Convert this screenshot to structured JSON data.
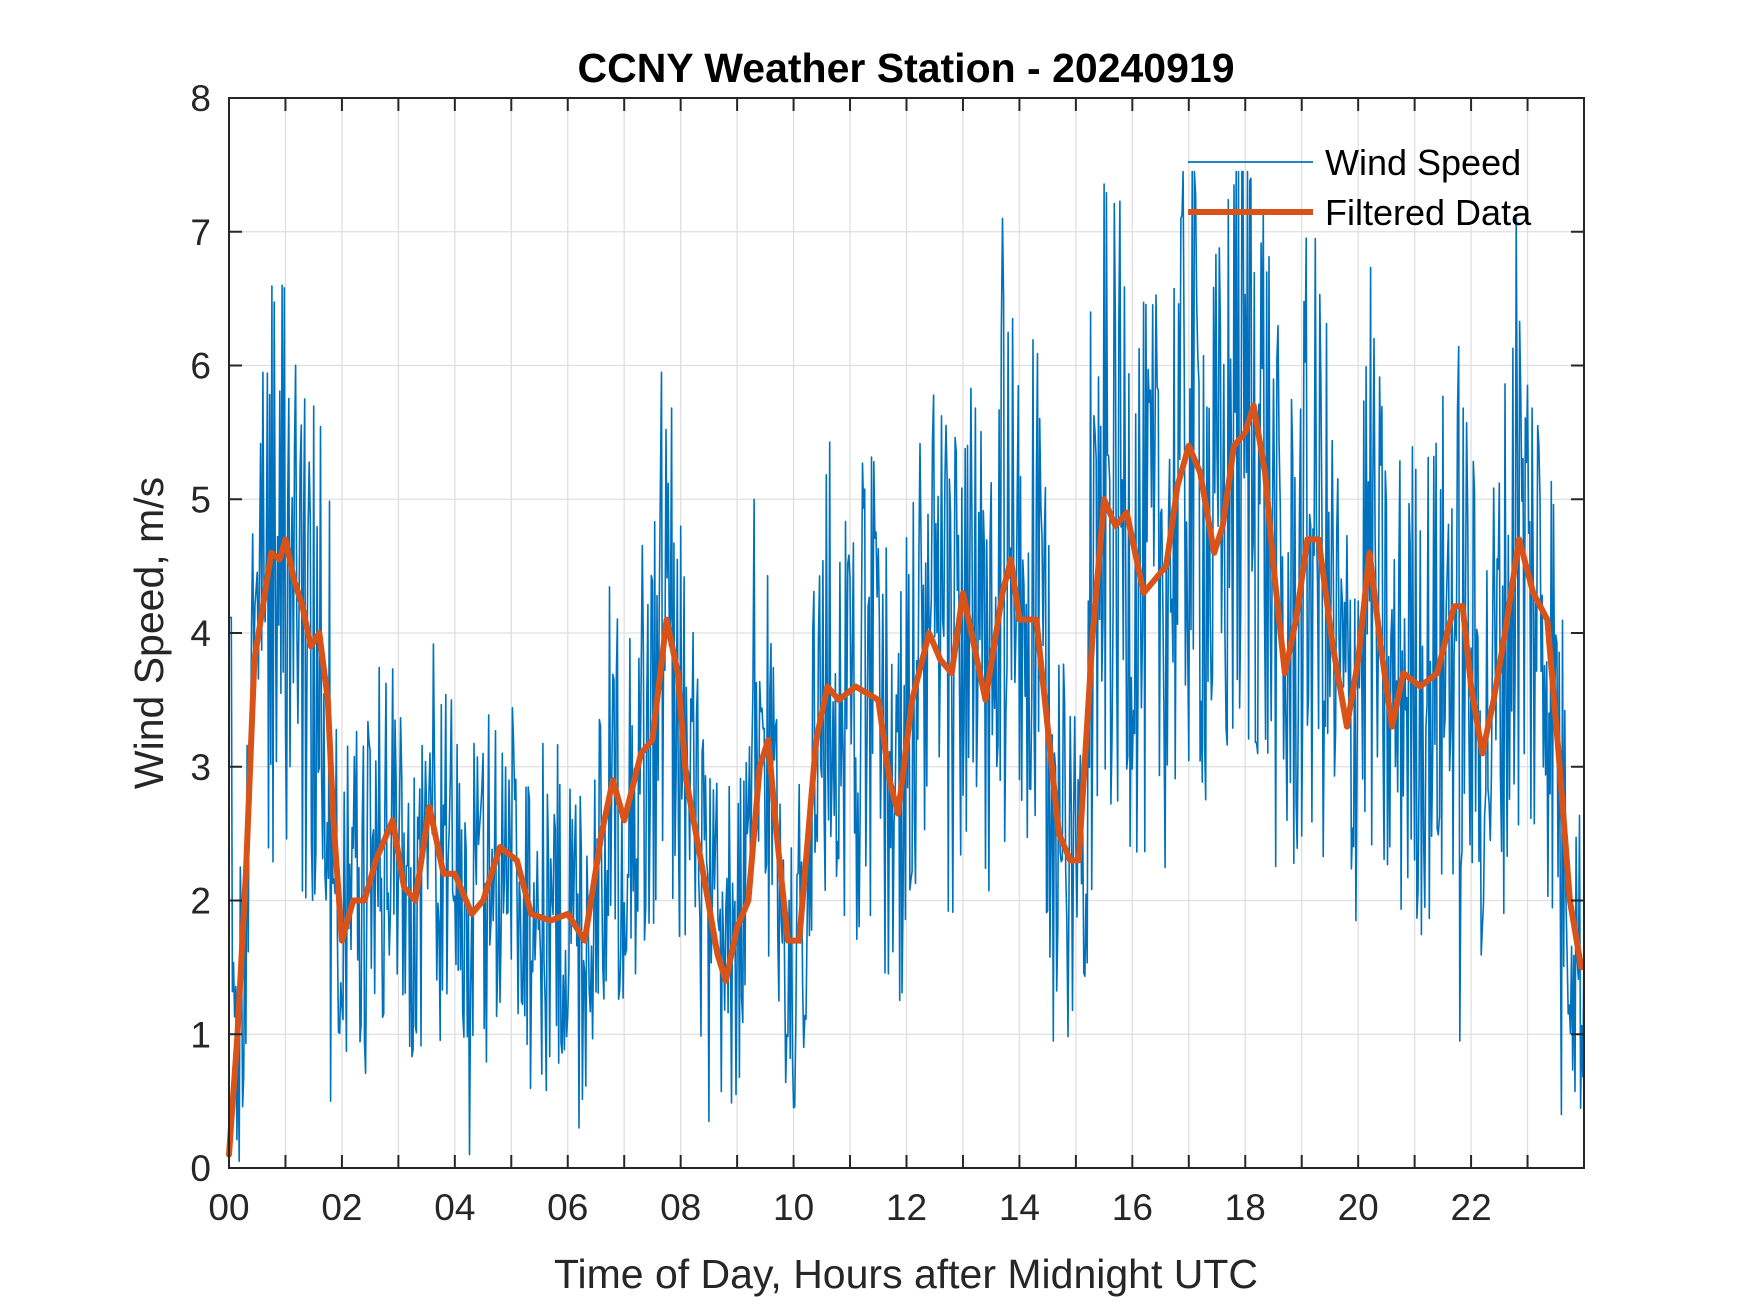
{
  "chart_data": {
    "type": "line",
    "title": "CCNY Weather Station - 20240919",
    "xlabel": "Time of Day, Hours after Midnight UTC",
    "ylabel": "Wind Speed, m/s",
    "xlim": [
      0,
      24
    ],
    "ylim": [
      0,
      8
    ],
    "grid": true,
    "x_ticks": [
      0,
      2,
      4,
      6,
      8,
      10,
      12,
      14,
      16,
      18,
      20,
      22
    ],
    "x_tick_labels": [
      "00",
      "02",
      "04",
      "06",
      "08",
      "10",
      "12",
      "14",
      "16",
      "18",
      "20",
      "22"
    ],
    "x_minor_grid_step": 1,
    "y_ticks": [
      0,
      1,
      2,
      3,
      4,
      5,
      6,
      7,
      8
    ],
    "y_tick_labels": [
      "0",
      "1",
      "2",
      "3",
      "4",
      "5",
      "6",
      "7",
      "8"
    ],
    "legend_position": "top-right",
    "series": [
      {
        "name": "Wind Speed",
        "color": "#0072BD",
        "style": "thin",
        "sample_interval_hours": 0.05,
        "x_start": 0,
        "noise_envelope_note": "raw 1-min-ish data, noisy around filtered curve",
        "peaks": [
          {
            "x": 0.95,
            "y": 6.6
          },
          {
            "x": 1.35,
            "y": 5.75
          },
          {
            "x": 7.65,
            "y": 5.95
          },
          {
            "x": 9.3,
            "y": 5.0
          },
          {
            "x": 13.7,
            "y": 7.1
          },
          {
            "x": 15.25,
            "y": 6.4
          },
          {
            "x": 16.85,
            "y": 7.1
          },
          {
            "x": 17.8,
            "y": 7.35
          },
          {
            "x": 18.1,
            "y": 7.4
          },
          {
            "x": 22.8,
            "y": 7.1
          }
        ],
        "troughs": [
          {
            "x": 1.8,
            "y": 0.5
          },
          {
            "x": 4.25,
            "y": 0.1
          },
          {
            "x": 6.2,
            "y": 0.3
          },
          {
            "x": 8.5,
            "y": 0.35
          },
          {
            "x": 10.0,
            "y": 0.45
          },
          {
            "x": 14.6,
            "y": 0.95
          },
          {
            "x": 21.8,
            "y": 0.95
          },
          {
            "x": 23.6,
            "y": 0.4
          }
        ]
      },
      {
        "name": "Filtered Data",
        "color": "#D95319",
        "style": "thick",
        "x": [
          0,
          0.15,
          0.3,
          0.45,
          0.6,
          0.75,
          0.9,
          1.0,
          1.15,
          1.3,
          1.45,
          1.6,
          1.75,
          1.85,
          2.0,
          2.2,
          2.4,
          2.6,
          2.9,
          3.1,
          3.3,
          3.55,
          3.8,
          4.0,
          4.3,
          4.5,
          4.8,
          5.1,
          5.35,
          5.7,
          6.0,
          6.3,
          6.6,
          6.8,
          7.0,
          7.3,
          7.5,
          7.75,
          7.95,
          8.1,
          8.4,
          8.65,
          8.8,
          9.0,
          9.2,
          9.4,
          9.55,
          9.7,
          9.9,
          10.1,
          10.4,
          10.6,
          10.8,
          11.1,
          11.5,
          11.7,
          11.85,
          12.1,
          12.4,
          12.6,
          12.8,
          13.0,
          13.2,
          13.4,
          13.7,
          13.85,
          14.0,
          14.3,
          14.5,
          14.7,
          14.9,
          15.05,
          15.3,
          15.5,
          15.7,
          15.9,
          16.2,
          16.4,
          16.6,
          16.8,
          17.0,
          17.2,
          17.45,
          17.6,
          17.8,
          18.0,
          18.15,
          18.35,
          18.5,
          18.7,
          18.9,
          19.1,
          19.3,
          19.55,
          19.8,
          20.0,
          20.2,
          20.4,
          20.6,
          20.8,
          21.1,
          21.4,
          21.7,
          21.85,
          22.0,
          22.2,
          22.4,
          22.6,
          22.85,
          23.1,
          23.35,
          23.55,
          23.75,
          23.95
        ],
        "y": [
          0.1,
          1.0,
          2.2,
          3.8,
          4.2,
          4.6,
          4.55,
          4.7,
          4.4,
          4.2,
          3.9,
          4.0,
          3.5,
          2.6,
          1.7,
          2.0,
          2.0,
          2.3,
          2.6,
          2.1,
          2.0,
          2.7,
          2.2,
          2.2,
          1.9,
          2.0,
          2.4,
          2.3,
          1.9,
          1.85,
          1.9,
          1.7,
          2.5,
          2.9,
          2.6,
          3.1,
          3.2,
          4.1,
          3.7,
          2.9,
          2.2,
          1.6,
          1.4,
          1.8,
          2.0,
          3.0,
          3.2,
          2.5,
          1.7,
          1.7,
          3.2,
          3.6,
          3.5,
          3.6,
          3.5,
          2.9,
          2.65,
          3.5,
          4.0,
          3.8,
          3.7,
          4.3,
          3.9,
          3.5,
          4.3,
          4.55,
          4.1,
          4.1,
          3.3,
          2.5,
          2.3,
          2.3,
          4.0,
          5.0,
          4.8,
          4.9,
          4.3,
          4.4,
          4.5,
          5.1,
          5.4,
          5.2,
          4.6,
          4.8,
          5.4,
          5.5,
          5.7,
          5.2,
          4.5,
          3.7,
          4.1,
          4.7,
          4.7,
          3.9,
          3.3,
          3.8,
          4.6,
          3.9,
          3.3,
          3.7,
          3.6,
          3.7,
          4.2,
          4.2,
          3.6,
          3.1,
          3.5,
          4.0,
          4.7,
          4.3,
          4.1,
          3.1,
          2.0,
          1.5
        ]
      }
    ]
  }
}
